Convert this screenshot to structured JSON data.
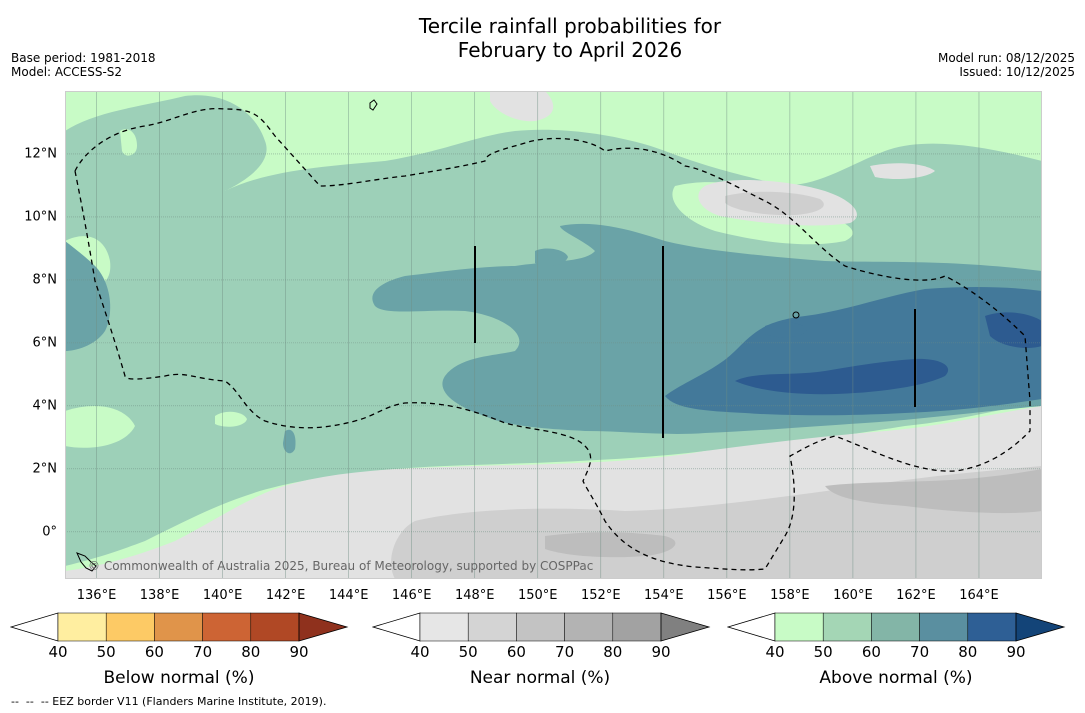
{
  "title_line1": "Tercile rainfall probabilities for",
  "title_line2": "February to April 2026",
  "base_period": "Base period: 1981-2018",
  "model": "Model: ACCESS-S2",
  "model_run": "Model run: 08/12/2025",
  "issued": "Issued: 10/12/2025",
  "copyright": "© Commonwealth of Australia 2025, Bureau of Meteorology, supported by COSPPac",
  "footnote": "--  --  -- EEZ border V11 (Flanders Marine Institute, 2019).",
  "lon_ticks": [
    "136°E",
    "138°E",
    "140°E",
    "142°E",
    "144°E",
    "146°E",
    "148°E",
    "150°E",
    "152°E",
    "154°E",
    "156°E",
    "158°E",
    "160°E",
    "162°E",
    "164°E"
  ],
  "lat_ticks": [
    "12°N",
    "10°N",
    "8°N",
    "6°N",
    "4°N",
    "2°N",
    "0°"
  ],
  "map_extent": {
    "lon_min": 135,
    "lon_max": 166,
    "lat_min": -1.5,
    "lat_max": 14
  },
  "colorbars": {
    "below": {
      "label": "Below normal (%)",
      "ticks": [
        "40",
        "50",
        "60",
        "70",
        "80",
        "90"
      ],
      "colors": [
        "#ffeea0",
        "#fdca65",
        "#e0944a",
        "#cd6434",
        "#b04825",
        "#8f311d"
      ]
    },
    "near": {
      "label": "Near normal (%)",
      "ticks": [
        "40",
        "50",
        "60",
        "70",
        "80",
        "90"
      ],
      "colors": [
        "#e6e6e6",
        "#d4d4d4",
        "#c3c3c3",
        "#b3b3b3",
        "#a2a2a2",
        "#808080"
      ]
    },
    "above": {
      "label": "Above normal (%)",
      "ticks": [
        "40",
        "50",
        "60",
        "70",
        "80",
        "90"
      ],
      "colors": [
        "#c8fbc6",
        "#a4d6b5",
        "#83b5a7",
        "#5a8fa0",
        "#2e5f95",
        "#134478"
      ]
    }
  },
  "colors": {
    "above_bg": "#c8fbc6",
    "above_50": "#9dd0b8",
    "above_60": "#6aa3a7",
    "above_70": "#43799a",
    "above_80": "#2d5b90",
    "near_40": "#e2e2e2",
    "near_50": "#cfcfcf",
    "near_60": "#bdbdbd"
  }
}
